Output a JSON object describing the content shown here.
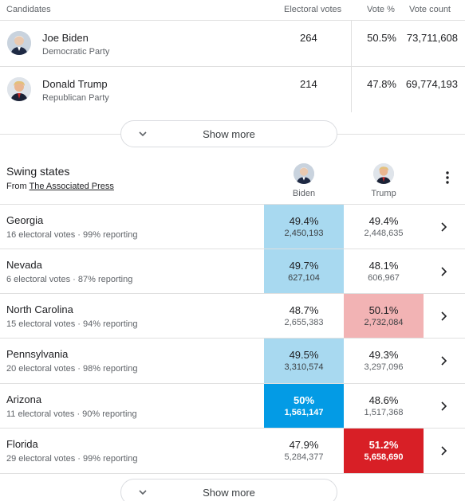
{
  "candidates_table": {
    "headers": {
      "candidates": "Candidates",
      "electoral_votes": "Electoral votes",
      "vote_pct": "Vote %",
      "vote_count": "Vote count"
    },
    "rows": [
      {
        "name": "Joe Biden",
        "party": "Democratic Party",
        "electoral_votes": "264",
        "vote_pct": "50.5%",
        "vote_count": "73,711,608"
      },
      {
        "name": "Donald Trump",
        "party": "Republican Party",
        "electoral_votes": "214",
        "vote_pct": "47.8%",
        "vote_count": "69,774,193"
      }
    ],
    "show_more": "Show more"
  },
  "swing_states": {
    "title": "Swing states",
    "from_prefix": "From ",
    "source": "The Associated Press",
    "columns": {
      "biden": "Biden",
      "trump": "Trump"
    },
    "rows": [
      {
        "state": "Georgia",
        "sub": "16 electoral votes · 99% reporting",
        "biden_pct": "49.4%",
        "biden_votes": "2,450,193",
        "trump_pct": "49.4%",
        "trump_votes": "2,448,635"
      },
      {
        "state": "Nevada",
        "sub": "6 electoral votes · 87% reporting",
        "biden_pct": "49.7%",
        "biden_votes": "627,104",
        "trump_pct": "48.1%",
        "trump_votes": "606,967"
      },
      {
        "state": "North Carolina",
        "sub": "15 electoral votes · 94% reporting",
        "biden_pct": "48.7%",
        "biden_votes": "2,655,383",
        "trump_pct": "50.1%",
        "trump_votes": "2,732,084"
      },
      {
        "state": "Pennsylvania",
        "sub": "20 electoral votes · 98% reporting",
        "biden_pct": "49.5%",
        "biden_votes": "3,310,574",
        "trump_pct": "49.3%",
        "trump_votes": "3,297,096"
      },
      {
        "state": "Arizona",
        "sub": "11 electoral votes · 90% reporting",
        "biden_pct": "50%",
        "biden_votes": "1,561,147",
        "trump_pct": "48.6%",
        "trump_votes": "1,517,368"
      },
      {
        "state": "Florida",
        "sub": "29 electoral votes · 99% reporting",
        "biden_pct": "47.9%",
        "biden_votes": "5,284,377",
        "trump_pct": "51.2%",
        "trump_votes": "5,658,690"
      }
    ],
    "show_more": "Show more"
  },
  "colors": {
    "lead_light_dem": "#a8d9f0",
    "lead_light_rep": "#f2b3b4",
    "called_dem": "#039be5",
    "called_rep": "#d81f26"
  },
  "icons": {
    "candidate_avatar": "person-avatar-icon",
    "show_more": "chevron-down-icon",
    "row_action": "chevron-right-icon",
    "menu": "more-vert-icon"
  }
}
